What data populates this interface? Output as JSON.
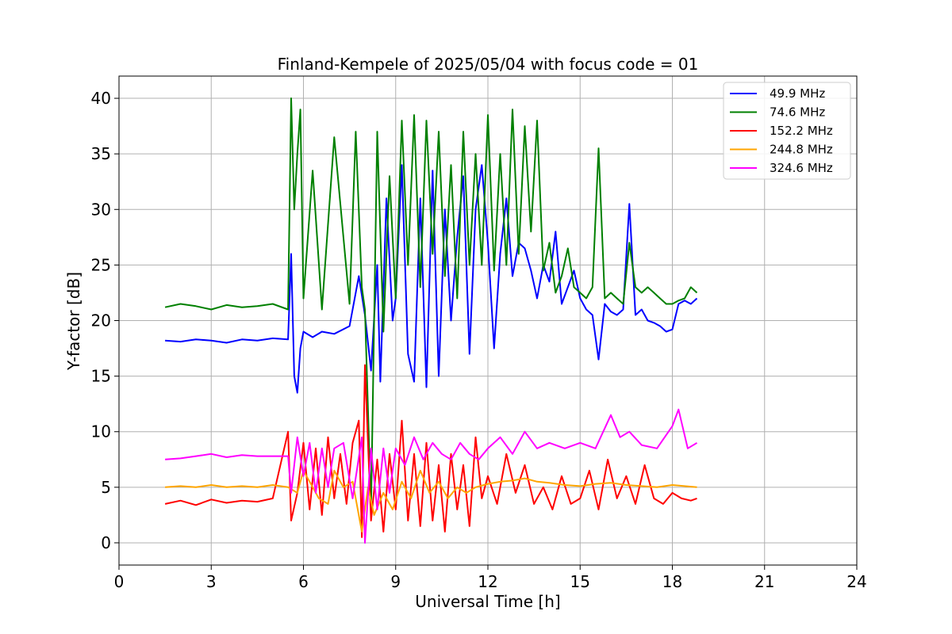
{
  "chart_data": {
    "type": "line",
    "title": "Finland-Kempele of 2025/05/04 with focus code = 01",
    "xlabel": "Universal Time [h]",
    "ylabel": "Y-factor [dB]",
    "xlim": [
      0,
      24
    ],
    "ylim": [
      -2,
      42
    ],
    "xticks": [
      0,
      3,
      6,
      9,
      12,
      15,
      18,
      21,
      24
    ],
    "yticks": [
      0,
      5,
      10,
      15,
      20,
      25,
      30,
      35,
      40
    ],
    "grid": true,
    "legend_position": "top-right",
    "series": [
      {
        "name": " 49.9 MHz",
        "color": "#0000ff",
        "x": [
          1.5,
          2.0,
          2.5,
          3.0,
          3.5,
          4.0,
          4.5,
          5.0,
          5.5,
          5.6,
          5.7,
          5.8,
          5.9,
          6.0,
          6.3,
          6.6,
          7.0,
          7.5,
          7.8,
          8.0,
          8.2,
          8.4,
          8.5,
          8.7,
          8.9,
          9.0,
          9.2,
          9.4,
          9.6,
          9.8,
          10.0,
          10.2,
          10.4,
          10.6,
          10.8,
          11.0,
          11.2,
          11.4,
          11.6,
          11.8,
          12.0,
          12.2,
          12.4,
          12.6,
          12.8,
          13.0,
          13.2,
          13.4,
          13.6,
          13.8,
          14.0,
          14.2,
          14.4,
          14.6,
          14.8,
          15.0,
          15.2,
          15.4,
          15.6,
          15.8,
          16.0,
          16.2,
          16.4,
          16.6,
          16.8,
          17.0,
          17.2,
          17.4,
          17.6,
          17.8,
          18.0,
          18.2,
          18.4,
          18.6,
          18.8
        ],
        "y": [
          18.2,
          18.1,
          18.3,
          18.2,
          18.0,
          18.3,
          18.2,
          18.4,
          18.3,
          26.0,
          15.0,
          13.5,
          17.5,
          19.0,
          18.5,
          19.0,
          18.8,
          19.5,
          24.0,
          20.5,
          15.5,
          25.0,
          14.5,
          31.0,
          20.0,
          22.0,
          34.0,
          17.0,
          14.5,
          31.0,
          14.0,
          33.5,
          15.0,
          30.0,
          20.0,
          27.5,
          33.0,
          17.0,
          30.0,
          34.0,
          27.0,
          17.5,
          26.0,
          31.0,
          24.0,
          27.0,
          26.5,
          24.5,
          22.0,
          25.0,
          23.5,
          28.0,
          21.5,
          23.0,
          24.5,
          22.0,
          21.0,
          20.5,
          16.5,
          21.5,
          20.8,
          20.5,
          21.0,
          30.5,
          20.5,
          21.0,
          20.0,
          19.8,
          19.5,
          19.0,
          19.2,
          21.5,
          21.8,
          21.5,
          22.0
        ]
      },
      {
        "name": " 74.6 MHz",
        "color": "#008000",
        "x": [
          1.5,
          2.0,
          2.5,
          3.0,
          3.5,
          4.0,
          4.5,
          5.0,
          5.5,
          5.6,
          5.7,
          5.8,
          5.9,
          6.0,
          6.3,
          6.6,
          7.0,
          7.5,
          7.7,
          7.9,
          8.0,
          8.2,
          8.4,
          8.6,
          8.8,
          9.0,
          9.2,
          9.4,
          9.6,
          9.8,
          10.0,
          10.2,
          10.4,
          10.6,
          10.8,
          11.0,
          11.2,
          11.4,
          11.6,
          11.8,
          12.0,
          12.2,
          12.4,
          12.6,
          12.8,
          13.0,
          13.2,
          13.4,
          13.6,
          13.8,
          14.0,
          14.2,
          14.4,
          14.6,
          14.8,
          15.0,
          15.2,
          15.4,
          15.6,
          15.8,
          16.0,
          16.2,
          16.4,
          16.6,
          16.8,
          17.0,
          17.2,
          17.4,
          17.6,
          17.8,
          18.0,
          18.2,
          18.4,
          18.6,
          18.8
        ],
        "y": [
          21.2,
          21.5,
          21.3,
          21.0,
          21.4,
          21.2,
          21.3,
          21.5,
          21.0,
          40.0,
          30.0,
          35.0,
          39.0,
          22.0,
          33.5,
          21.0,
          36.5,
          21.5,
          37.0,
          23.0,
          21.0,
          3.0,
          37.0,
          19.0,
          33.0,
          22.0,
          38.0,
          25.0,
          38.5,
          23.0,
          38.0,
          26.0,
          37.0,
          24.0,
          34.0,
          22.0,
          37.0,
          25.0,
          35.0,
          25.0,
          38.5,
          24.5,
          35.0,
          25.0,
          39.0,
          26.0,
          37.5,
          28.0,
          38.0,
          24.5,
          27.0,
          22.5,
          24.0,
          26.5,
          23.0,
          22.5,
          22.0,
          23.0,
          35.5,
          22.0,
          22.5,
          22.0,
          21.5,
          27.0,
          23.0,
          22.5,
          23.0,
          22.5,
          22.0,
          21.5,
          21.5,
          21.8,
          22.0,
          23.0,
          22.5
        ]
      },
      {
        "name": "152.2 MHz",
        "color": "#ff0000",
        "x": [
          1.5,
          2.0,
          2.5,
          3.0,
          3.5,
          4.0,
          4.5,
          5.0,
          5.5,
          5.6,
          5.8,
          6.0,
          6.2,
          6.4,
          6.6,
          6.8,
          7.0,
          7.2,
          7.4,
          7.6,
          7.8,
          7.9,
          8.0,
          8.2,
          8.4,
          8.6,
          8.8,
          9.0,
          9.2,
          9.4,
          9.6,
          9.8,
          10.0,
          10.2,
          10.4,
          10.6,
          10.8,
          11.0,
          11.2,
          11.4,
          11.6,
          11.8,
          12.0,
          12.3,
          12.6,
          12.9,
          13.2,
          13.5,
          13.8,
          14.1,
          14.4,
          14.7,
          15.0,
          15.3,
          15.6,
          15.9,
          16.2,
          16.5,
          16.8,
          17.1,
          17.4,
          17.7,
          18.0,
          18.3,
          18.6,
          18.8
        ],
        "y": [
          3.5,
          3.8,
          3.4,
          3.9,
          3.6,
          3.8,
          3.7,
          4.0,
          10.0,
          2.0,
          4.5,
          9.0,
          3.0,
          8.5,
          2.5,
          9.5,
          4.0,
          8.0,
          3.5,
          9.0,
          11.0,
          0.5,
          16.0,
          2.0,
          7.5,
          1.0,
          8.0,
          3.0,
          11.0,
          2.0,
          8.0,
          1.5,
          9.0,
          2.0,
          7.0,
          1.0,
          8.0,
          3.0,
          7.0,
          1.5,
          9.5,
          4.0,
          6.0,
          3.5,
          8.0,
          4.5,
          7.0,
          3.5,
          5.0,
          3.0,
          6.0,
          3.5,
          4.0,
          6.5,
          3.0,
          7.5,
          4.0,
          6.0,
          3.5,
          7.0,
          4.0,
          3.5,
          4.5,
          4.0,
          3.8,
          4.0
        ]
      },
      {
        "name": "244.8 MHz",
        "color": "#ffa500",
        "x": [
          1.5,
          2.0,
          2.5,
          3.0,
          3.5,
          4.0,
          4.5,
          5.0,
          5.5,
          5.8,
          6.0,
          6.2,
          6.5,
          6.8,
          7.0,
          7.3,
          7.6,
          7.9,
          8.1,
          8.3,
          8.6,
          8.9,
          9.2,
          9.5,
          9.8,
          10.1,
          10.4,
          10.7,
          11.0,
          11.3,
          11.6,
          12.0,
          12.4,
          12.8,
          13.2,
          13.6,
          14.0,
          14.5,
          15.0,
          15.5,
          16.0,
          16.5,
          17.0,
          17.5,
          18.0,
          18.4,
          18.8
        ],
        "y": [
          5.0,
          5.1,
          5.0,
          5.2,
          5.0,
          5.1,
          5.0,
          5.2,
          5.0,
          4.5,
          6.5,
          5.5,
          4.0,
          3.5,
          6.5,
          5.0,
          5.5,
          1.0,
          5.0,
          2.5,
          4.5,
          3.0,
          5.5,
          4.0,
          6.5,
          4.5,
          5.5,
          4.0,
          5.0,
          4.5,
          5.0,
          5.3,
          5.5,
          5.6,
          5.8,
          5.5,
          5.4,
          5.2,
          5.1,
          5.3,
          5.4,
          5.2,
          5.1,
          5.0,
          5.2,
          5.1,
          5.0
        ]
      },
      {
        "name": "324.6 MHz",
        "color": "#ff00ff",
        "x": [
          1.5,
          2.0,
          2.5,
          3.0,
          3.5,
          4.0,
          4.5,
          5.0,
          5.5,
          5.6,
          5.8,
          6.0,
          6.2,
          6.4,
          6.6,
          6.8,
          7.0,
          7.3,
          7.6,
          7.9,
          8.0,
          8.2,
          8.4,
          8.6,
          8.8,
          9.0,
          9.3,
          9.6,
          9.9,
          10.2,
          10.5,
          10.8,
          11.1,
          11.4,
          11.7,
          12.0,
          12.4,
          12.8,
          13.2,
          13.6,
          14.0,
          14.5,
          15.0,
          15.5,
          16.0,
          16.3,
          16.6,
          17.0,
          17.5,
          18.0,
          18.2,
          18.5,
          18.8
        ],
        "y": [
          7.5,
          7.6,
          7.8,
          8.0,
          7.7,
          7.9,
          7.8,
          7.8,
          7.8,
          4.5,
          9.5,
          6.0,
          9.0,
          4.5,
          8.5,
          5.0,
          8.5,
          9.0,
          4.0,
          9.5,
          0.0,
          8.5,
          3.0,
          8.5,
          4.5,
          8.5,
          7.0,
          9.5,
          7.5,
          9.0,
          8.0,
          7.5,
          9.0,
          8.0,
          7.5,
          8.5,
          9.5,
          8.0,
          10.0,
          8.5,
          9.0,
          8.5,
          9.0,
          8.5,
          11.5,
          9.5,
          10.0,
          8.8,
          8.5,
          10.5,
          12.0,
          8.5,
          9.0
        ]
      }
    ]
  }
}
